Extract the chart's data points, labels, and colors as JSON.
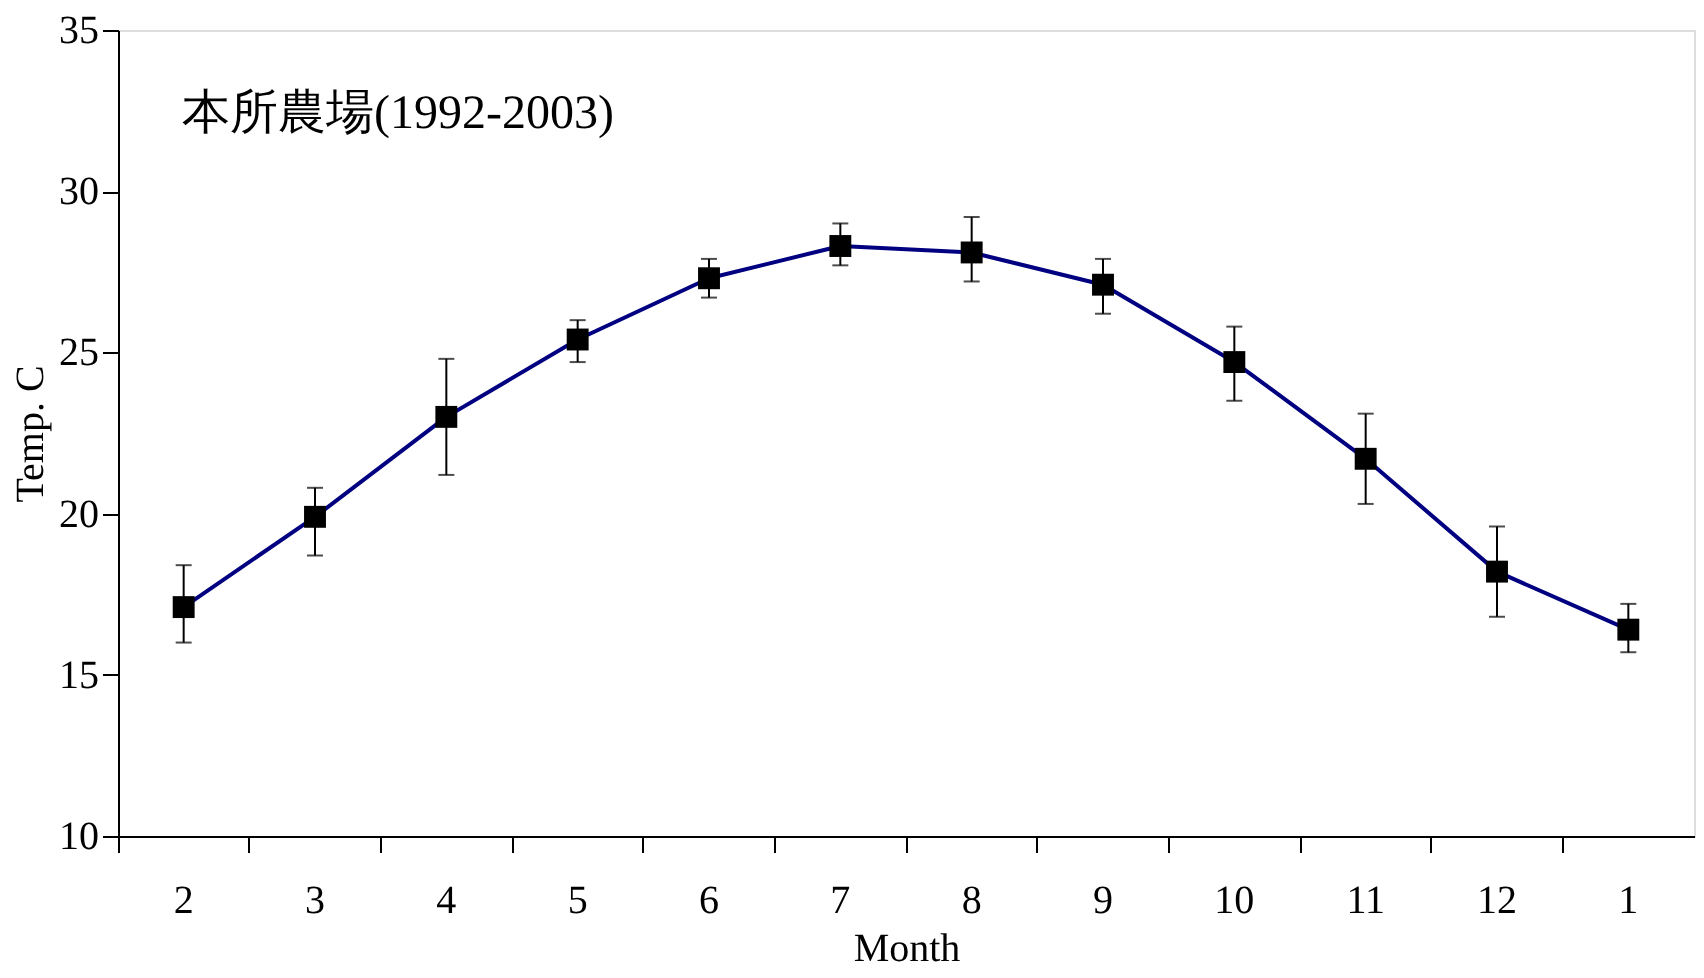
{
  "chart_data": {
    "type": "line",
    "title": "本所農場(1992-2003)",
    "xlabel": "Month",
    "ylabel": "Temp. C",
    "categories": [
      "2",
      "3",
      "4",
      "5",
      "6",
      "7",
      "8",
      "9",
      "10",
      "11",
      "12",
      "1"
    ],
    "series": [
      {
        "color": "#000080",
        "values": [
          17.1,
          19.9,
          23.0,
          25.4,
          27.3,
          28.3,
          28.1,
          27.1,
          24.7,
          21.7,
          18.2,
          16.4
        ],
        "errors": [
          [
            16.0,
            18.4
          ],
          [
            18.7,
            20.8
          ],
          [
            21.2,
            24.8
          ],
          [
            24.7,
            26.0
          ],
          [
            26.7,
            27.9
          ],
          [
            27.7,
            29.0
          ],
          [
            27.2,
            29.2
          ],
          [
            26.2,
            27.9
          ],
          [
            23.5,
            25.8
          ],
          [
            20.3,
            23.1
          ],
          [
            16.8,
            19.6
          ],
          [
            15.7,
            17.2
          ]
        ]
      }
    ],
    "ylim": [
      10,
      35
    ],
    "yticks": [
      10,
      15,
      20,
      25,
      30,
      35
    ],
    "marker": "square",
    "line_style": "solid",
    "grid": false
  }
}
